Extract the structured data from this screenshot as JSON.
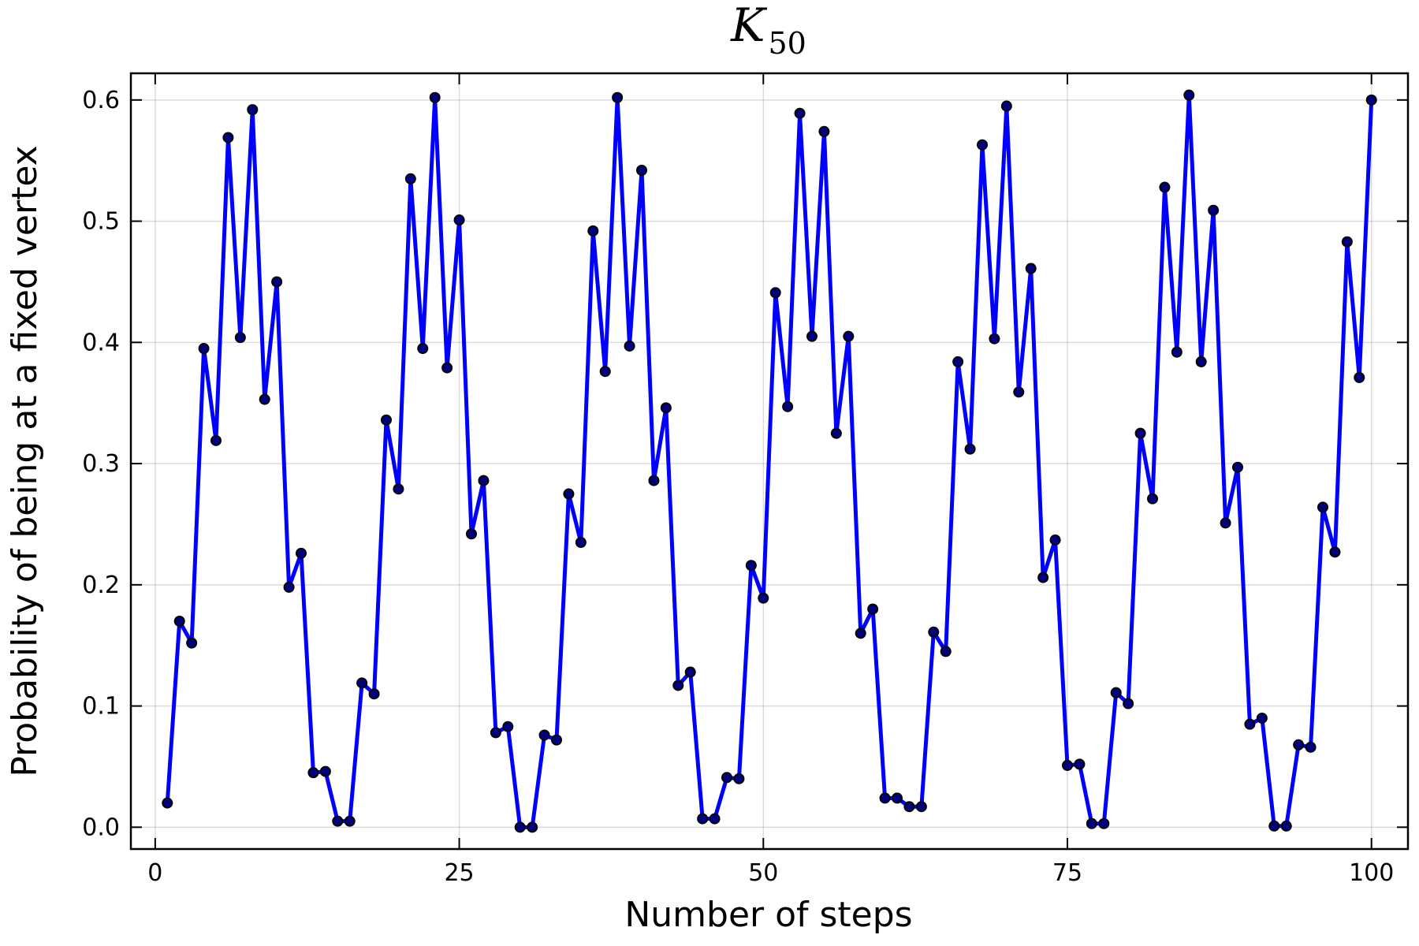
{
  "chart_data": {
    "type": "line",
    "title": "K",
    "title_subscript": "50",
    "xlabel": "Number of steps",
    "ylabel": "Probability of being at a fixed vertex",
    "xlim": [
      -2,
      103
    ],
    "ylim": [
      -0.018,
      0.622
    ],
    "x_ticks": [
      0,
      25,
      50,
      75,
      100
    ],
    "x_tick_labels": [
      "0",
      "25",
      "50",
      "75",
      "100"
    ],
    "y_ticks": [
      0.0,
      0.1,
      0.2,
      0.3,
      0.4,
      0.5,
      0.6
    ],
    "y_tick_labels": [
      "0.0",
      "0.1",
      "0.2",
      "0.3",
      "0.4",
      "0.5",
      "0.6"
    ],
    "grid": true,
    "legend": "none",
    "line_color": "#0000ff",
    "marker_color": "#000080",
    "series": [
      {
        "x": [
          1,
          2,
          3,
          4,
          5,
          6,
          7,
          8,
          9,
          10,
          11,
          12,
          13,
          14,
          15,
          16,
          17,
          18,
          19,
          20,
          21,
          22,
          23,
          24,
          25,
          26,
          27,
          28,
          29,
          30,
          31,
          32,
          33,
          34,
          35,
          36,
          37,
          38,
          39,
          40,
          41,
          42,
          43,
          44,
          45,
          46,
          47,
          48,
          49,
          50,
          51,
          52,
          53,
          54,
          55,
          56,
          57,
          58,
          59,
          60,
          61,
          62,
          63,
          64,
          65,
          66,
          67,
          68,
          69,
          70,
          71,
          72,
          73,
          74,
          75,
          76,
          77,
          78,
          79,
          80,
          81,
          82,
          83,
          84,
          85,
          86,
          87,
          88,
          89,
          90,
          91,
          92,
          93,
          94,
          95,
          96,
          97,
          98,
          99,
          100
        ],
        "values": [
          0.02,
          0.17,
          0.152,
          0.395,
          0.319,
          0.569,
          0.404,
          0.592,
          0.353,
          0.45,
          0.198,
          0.226,
          0.045,
          0.046,
          0.005,
          0.005,
          0.119,
          0.11,
          0.336,
          0.279,
          0.535,
          0.395,
          0.602,
          0.379,
          0.501,
          0.242,
          0.286,
          0.078,
          0.083,
          0.0,
          0.0,
          0.076,
          0.072,
          0.275,
          0.235,
          0.492,
          0.376,
          0.602,
          0.397,
          0.542,
          0.286,
          0.346,
          0.117,
          0.128,
          0.007,
          0.007,
          0.041,
          0.04,
          0.216,
          0.189,
          0.441,
          0.347,
          0.589,
          0.405,
          0.574,
          0.325,
          0.405,
          0.16,
          0.18,
          0.024,
          0.024,
          0.017,
          0.017,
          0.161,
          0.145,
          0.384,
          0.312,
          0.563,
          0.403,
          0.595,
          0.359,
          0.461,
          0.206,
          0.237,
          0.051,
          0.052,
          0.003,
          0.003,
          0.111,
          0.102,
          0.325,
          0.271,
          0.528,
          0.392,
          0.604,
          0.384,
          0.509,
          0.251,
          0.297,
          0.085,
          0.09,
          0.001,
          0.001,
          0.068,
          0.066,
          0.264,
          0.227,
          0.483,
          0.371,
          0.6
        ]
      }
    ]
  }
}
